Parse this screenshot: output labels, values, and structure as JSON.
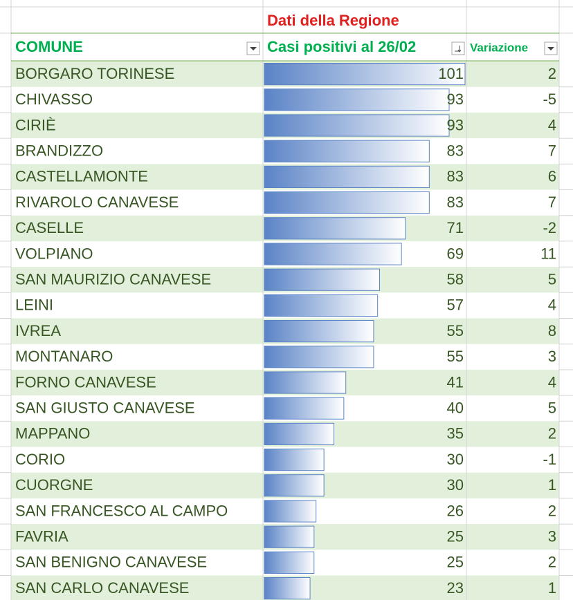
{
  "header": {
    "title": "Dati della Regione",
    "columns": [
      "COMUNE",
      "Casi positivi al 26/02",
      "Variazione"
    ]
  },
  "table": {
    "rows": [
      [
        "BORGARO TORINESE",
        101,
        2
      ],
      [
        "CHIVASSO",
        93,
        -5
      ],
      [
        "CIRIÈ",
        93,
        4
      ],
      [
        "BRANDIZZO",
        83,
        7
      ],
      [
        "CASTELLAMONTE",
        83,
        6
      ],
      [
        "RIVAROLO CANAVESE",
        83,
        7
      ],
      [
        "CASELLE",
        71,
        -2
      ],
      [
        "VOLPIANO",
        69,
        11
      ],
      [
        "SAN MAURIZIO CANAVESE",
        58,
        5
      ],
      [
        "LEINI",
        57,
        4
      ],
      [
        "IVREA",
        55,
        8
      ],
      [
        "MONTANARO",
        55,
        3
      ],
      [
        "FORNO CANAVESE",
        41,
        4
      ],
      [
        "SAN GIUSTO CANAVESE",
        40,
        5
      ],
      [
        "MAPPANO",
        35,
        2
      ],
      [
        "CORIO",
        30,
        -1
      ],
      [
        "CUORGNE",
        30,
        1
      ],
      [
        "SAN FRANCESCO AL CAMPO",
        26,
        2
      ],
      [
        "FAVRIA",
        25,
        3
      ],
      [
        "SAN BENIGNO CANAVESE",
        25,
        2
      ],
      [
        "SAN CARLO CANAVESE",
        23,
        1
      ]
    ]
  }
}
